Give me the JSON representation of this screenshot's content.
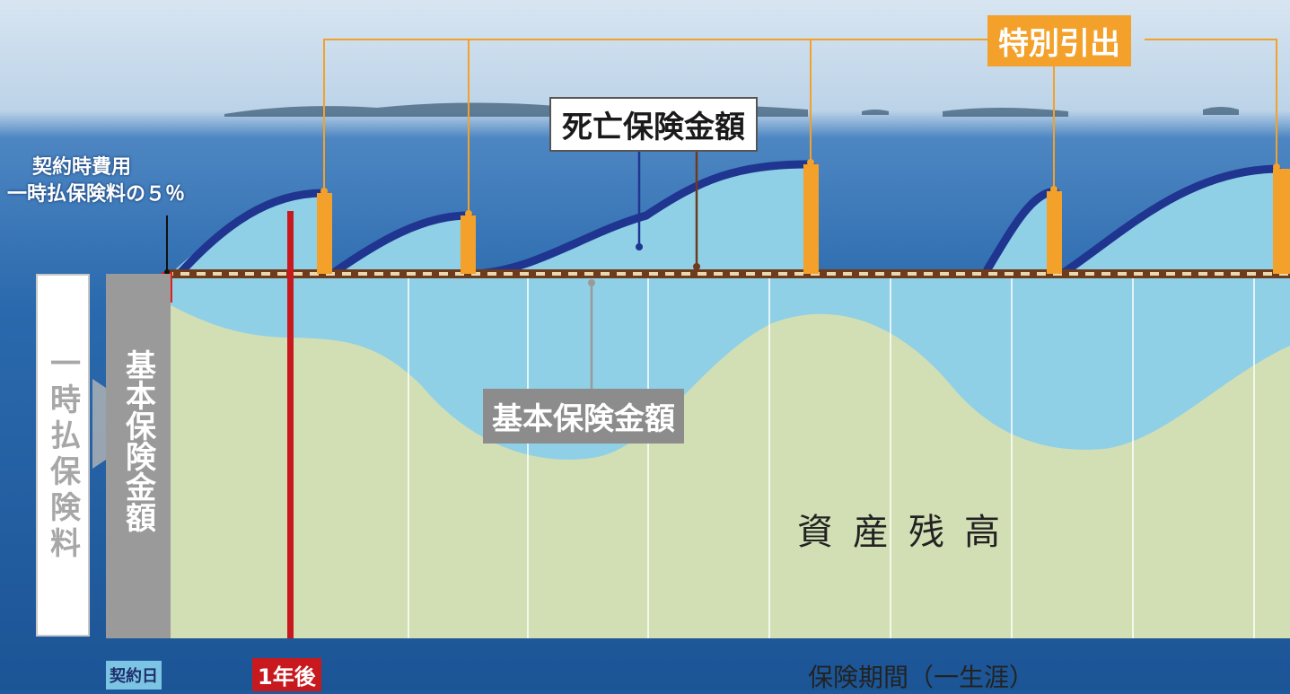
{
  "labels": {
    "special_withdrawal": "特別引出",
    "death_benefit": "死亡保険金額",
    "basic_sum": "基本保険金額",
    "contract_fee_line1": "契約時費用",
    "contract_fee_line2": "一時払保険料の５％",
    "single_premium": "一時払保険料",
    "basic_sum_vertical": "基本保険金額",
    "asset_balance": "資産残高",
    "contract_date": "契約日",
    "one_year_after": "1年後",
    "insurance_period": "保険期間（一生涯）"
  },
  "colors": {
    "sea_dark": "#1d5a9c",
    "sea_light": "#7fb4df",
    "sky": "#cfdfee",
    "death_area": "#8fd0e6",
    "asset_area": "#d2dfb5",
    "death_curve": "#1f3590",
    "withdrawal": "#f3a12a",
    "basic_line": "#6e3b1c",
    "red": "#c8191e",
    "gray": "#9a9a9a"
  }
}
